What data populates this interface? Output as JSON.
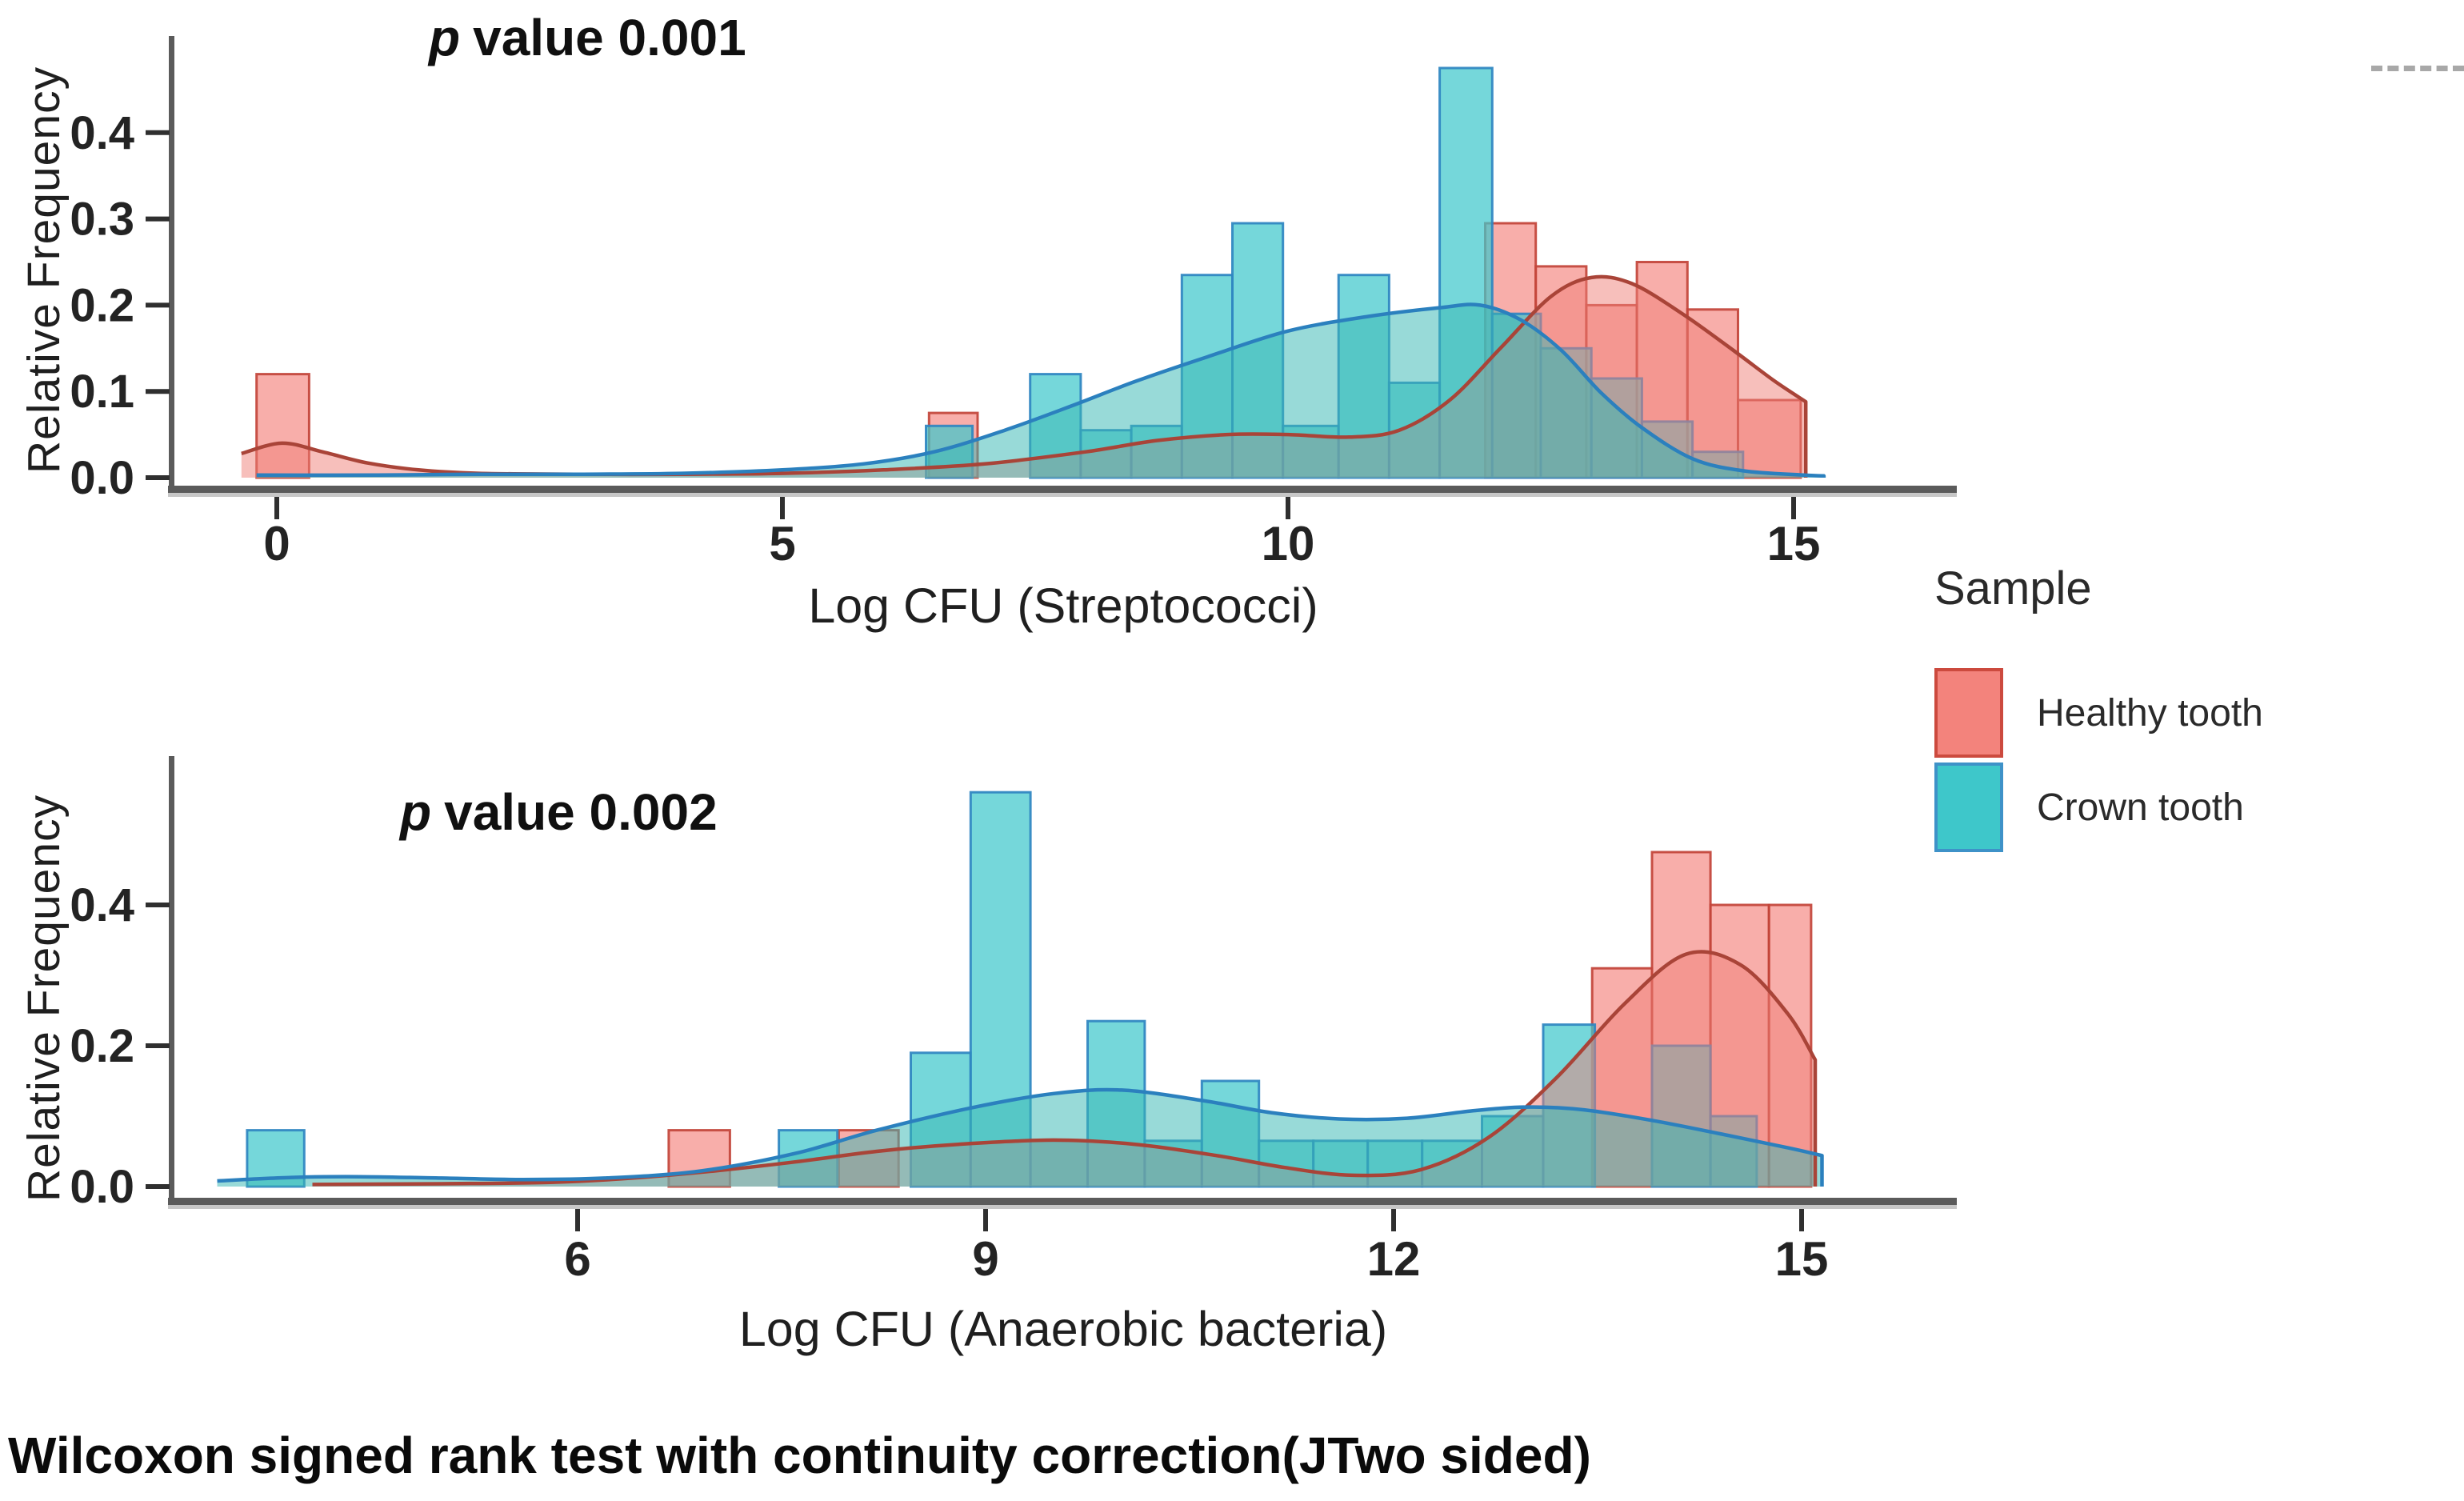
{
  "figure": {
    "caption": "Wilcoxon signed rank test with continuity correction(JTwo sided)"
  },
  "legend": {
    "title": "Sample",
    "items": [
      {
        "label": "Healthy tooth",
        "fill": "#F3837C",
        "border": "#CC4A3E"
      },
      {
        "label": "Crown tooth",
        "fill": "#3EC7CA",
        "border": "#3E92C8"
      }
    ]
  },
  "colors": {
    "axis": "#5B5B5B",
    "axis_shadow": "#C7C7C7",
    "tick": "#2F2F2F",
    "tick_label": "#232323"
  },
  "chart_data": [
    {
      "type": "histogram+density",
      "title_italic": "p",
      "title_rest": "value 0.001",
      "p_value": 0.001,
      "xlabel": "Log CFU (Streptococci)",
      "ylabel": "Relative Frequency",
      "xlim": [
        -0.7,
        15.8
      ],
      "ylim": [
        0,
        0.5
      ],
      "grid": false,
      "legend_position": "right",
      "xticks": [
        0,
        5,
        10,
        15
      ],
      "xtick_labels": [
        "0",
        "5",
        "10",
        "15"
      ],
      "yticks": [
        0.0,
        0.1,
        0.2,
        0.3,
        0.4
      ],
      "ytick_labels": [
        "0.0",
        "0.1",
        "0.2",
        "0.3",
        "0.4"
      ],
      "series": [
        {
          "name": "Healthy tooth",
          "bar_fill": "#F4837C",
          "bar_opacity": 0.65,
          "bar_stroke": "#C2443A",
          "area_fill": "#F08078",
          "area_opacity": 0.5,
          "line": "#A94438",
          "bars": [
            [
              -0.2,
              0.52,
              0.12
            ],
            [
              6.45,
              0.48,
              0.075
            ],
            [
              11.95,
              0.5,
              0.295
            ],
            [
              12.45,
              0.5,
              0.245
            ],
            [
              12.95,
              0.5,
              0.2
            ],
            [
              13.45,
              0.5,
              0.25
            ],
            [
              13.95,
              0.5,
              0.195
            ],
            [
              14.45,
              0.62,
              0.09
            ]
          ],
          "density": [
            [
              -0.35,
              0.028
            ],
            [
              0.05,
              0.04
            ],
            [
              0.45,
              0.03
            ],
            [
              0.9,
              0.017
            ],
            [
              1.4,
              0.009
            ],
            [
              2,
              0.005
            ],
            [
              3,
              0.004
            ],
            [
              4,
              0.004
            ],
            [
              5,
              0.005
            ],
            [
              6,
              0.009
            ],
            [
              7,
              0.016
            ],
            [
              8,
              0.03
            ],
            [
              8.7,
              0.043
            ],
            [
              9.4,
              0.05
            ],
            [
              10,
              0.05
            ],
            [
              10.6,
              0.047
            ],
            [
              11.1,
              0.055
            ],
            [
              11.6,
              0.09
            ],
            [
              12.1,
              0.15
            ],
            [
              12.6,
              0.21
            ],
            [
              13,
              0.232
            ],
            [
              13.4,
              0.225
            ],
            [
              13.9,
              0.19
            ],
            [
              14.4,
              0.148
            ],
            [
              14.8,
              0.113
            ],
            [
              15.12,
              0.088
            ]
          ]
        },
        {
          "name": "Crown tooth",
          "bar_fill": "#40C8CC",
          "bar_opacity": 0.72,
          "bar_stroke": "#2F86C1",
          "area_fill": "#39B8B4",
          "area_opacity": 0.52,
          "line": "#2B80BE",
          "bars": [
            [
              6.42,
              0.46,
              0.06
            ],
            [
              7.45,
              0.5,
              0.12
            ],
            [
              7.95,
              0.5,
              0.055
            ],
            [
              8.45,
              0.5,
              0.06
            ],
            [
              8.95,
              0.5,
              0.235
            ],
            [
              9.45,
              0.5,
              0.295
            ],
            [
              9.95,
              0.55,
              0.06
            ],
            [
              10.5,
              0.5,
              0.235
            ],
            [
              11.0,
              0.5,
              0.11
            ],
            [
              11.5,
              0.52,
              0.475
            ],
            [
              12.02,
              0.48,
              0.19
            ],
            [
              12.5,
              0.5,
              0.15
            ],
            [
              13.0,
              0.5,
              0.115
            ],
            [
              13.5,
              0.5,
              0.065
            ],
            [
              14.0,
              0.5,
              0.03
            ]
          ],
          "density": [
            [
              -0.2,
              0.003
            ],
            [
              1,
              0.003
            ],
            [
              2,
              0.004
            ],
            [
              3,
              0.004
            ],
            [
              4,
              0.005
            ],
            [
              5,
              0.009
            ],
            [
              5.8,
              0.016
            ],
            [
              6.5,
              0.03
            ],
            [
              7.2,
              0.055
            ],
            [
              7.9,
              0.085
            ],
            [
              8.5,
              0.112
            ],
            [
              9.2,
              0.14
            ],
            [
              10,
              0.17
            ],
            [
              10.8,
              0.187
            ],
            [
              11.5,
              0.197
            ],
            [
              11.9,
              0.2
            ],
            [
              12.3,
              0.183
            ],
            [
              12.7,
              0.148
            ],
            [
              13.1,
              0.098
            ],
            [
              13.5,
              0.058
            ],
            [
              14,
              0.022
            ],
            [
              14.5,
              0.008
            ],
            [
              15.1,
              0.003
            ],
            [
              15.3,
              0.002
            ]
          ]
        }
      ]
    },
    {
      "type": "histogram+density",
      "title_italic": "p",
      "title_rest": "value 0.002",
      "p_value": 0.002,
      "xlabel": "Log CFU (Anaerobic bacteria)",
      "ylabel": "Relative Frequency",
      "xlim": [
        3.0,
        15.6
      ],
      "ylim": [
        0,
        0.6
      ],
      "grid": false,
      "legend_position": "right",
      "xticks": [
        6,
        9,
        12,
        15
      ],
      "xtick_labels": [
        "6",
        "9",
        "12",
        "15"
      ],
      "yticks": [
        0.0,
        0.2,
        0.4
      ],
      "ytick_labels": [
        "0.0",
        "0.2",
        "0.4"
      ],
      "series": [
        {
          "name": "Healthy tooth",
          "bar_fill": "#F4837C",
          "bar_opacity": 0.65,
          "bar_stroke": "#C2443A",
          "area_fill": "#F08078",
          "area_opacity": 0.5,
          "line": "#A94438",
          "bars": [
            [
              6.67,
              0.45,
              0.08
            ],
            [
              7.92,
              0.44,
              0.08
            ],
            [
              13.46,
              0.44,
              0.31
            ],
            [
              13.9,
              0.43,
              0.475
            ],
            [
              14.33,
              0.43,
              0.4
            ],
            [
              14.76,
              0.31,
              0.4
            ]
          ],
          "density": [
            [
              4.05,
              0.003
            ],
            [
              5,
              0.004
            ],
            [
              5.8,
              0.006
            ],
            [
              6.4,
              0.012
            ],
            [
              7,
              0.022
            ],
            [
              7.6,
              0.035
            ],
            [
              8.2,
              0.05
            ],
            [
              8.8,
              0.06
            ],
            [
              9.5,
              0.066
            ],
            [
              10.1,
              0.06
            ],
            [
              10.7,
              0.044
            ],
            [
              11.2,
              0.027
            ],
            [
              11.7,
              0.016
            ],
            [
              12.2,
              0.024
            ],
            [
              12.7,
              0.07
            ],
            [
              13.2,
              0.155
            ],
            [
              13.7,
              0.26
            ],
            [
              14.15,
              0.33
            ],
            [
              14.55,
              0.315
            ],
            [
              14.9,
              0.245
            ],
            [
              15.1,
              0.18
            ]
          ]
        },
        {
          "name": "Crown tooth",
          "bar_fill": "#40C8CC",
          "bar_opacity": 0.72,
          "bar_stroke": "#2F86C1",
          "area_fill": "#39B8B4",
          "area_opacity": 0.52,
          "line": "#2B80BE",
          "bars": [
            [
              3.57,
              0.42,
              0.08
            ],
            [
              7.48,
              0.43,
              0.08
            ],
            [
              8.45,
              0.44,
              0.19
            ],
            [
              8.89,
              0.44,
              0.56
            ],
            [
              9.33,
              0.42,
              0.065
            ],
            [
              9.75,
              0.42,
              0.235
            ],
            [
              10.17,
              0.42,
              0.065
            ],
            [
              10.59,
              0.42,
              0.15
            ],
            [
              11.01,
              0.4,
              0.065
            ],
            [
              11.41,
              0.4,
              0.065
            ],
            [
              11.81,
              0.4,
              0.065
            ],
            [
              12.21,
              0.44,
              0.065
            ],
            [
              12.65,
              0.45,
              0.1
            ],
            [
              13.1,
              0.38,
              0.23
            ],
            [
              13.9,
              0.43,
              0.2
            ],
            [
              14.33,
              0.34,
              0.1
            ]
          ],
          "density": [
            [
              3.35,
              0.008
            ],
            [
              3.9,
              0.013
            ],
            [
              4.4,
              0.014
            ],
            [
              5,
              0.012
            ],
            [
              5.6,
              0.01
            ],
            [
              6.2,
              0.012
            ],
            [
              6.9,
              0.022
            ],
            [
              7.6,
              0.047
            ],
            [
              8.2,
              0.08
            ],
            [
              8.9,
              0.112
            ],
            [
              9.5,
              0.132
            ],
            [
              10,
              0.137
            ],
            [
              10.6,
              0.122
            ],
            [
              11.1,
              0.105
            ],
            [
              11.6,
              0.096
            ],
            [
              12.1,
              0.097
            ],
            [
              12.6,
              0.108
            ],
            [
              13,
              0.113
            ],
            [
              13.4,
              0.109
            ],
            [
              13.9,
              0.094
            ],
            [
              14.4,
              0.075
            ],
            [
              14.9,
              0.055
            ],
            [
              15.15,
              0.044
            ]
          ]
        }
      ]
    }
  ]
}
